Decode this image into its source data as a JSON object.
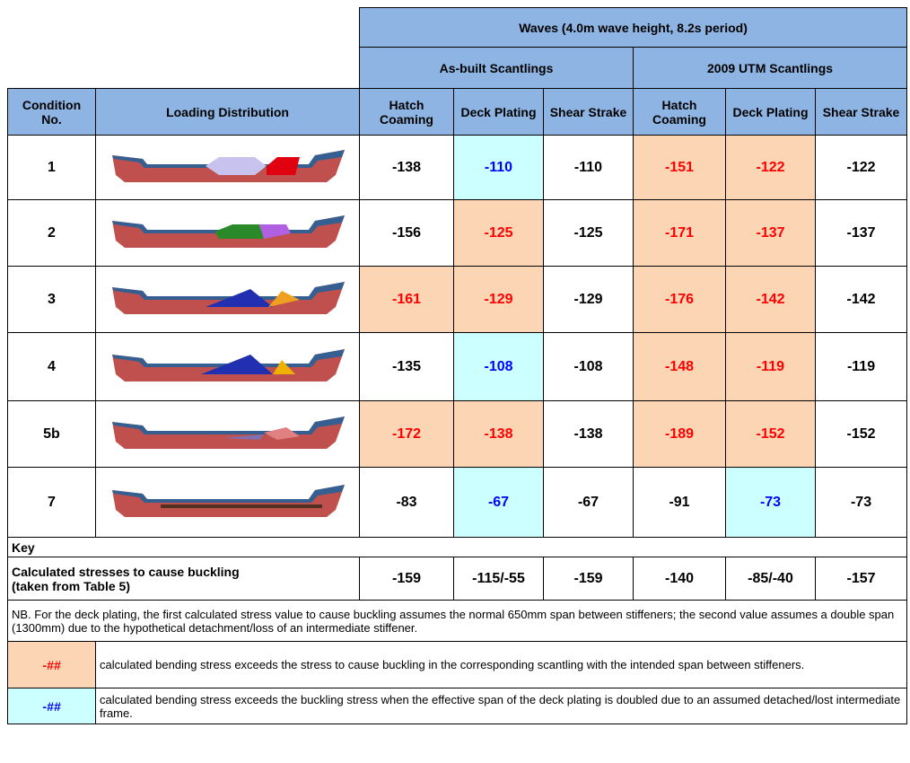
{
  "header": {
    "group_title": "Waves (4.0m wave height, 8.2s period)",
    "subgroups": [
      "As-built Scantlings",
      "2009 UTM Scantlings"
    ],
    "columns": [
      "Condition No.",
      "Loading Distribution",
      "Hatch Coaming",
      "Deck Plating",
      "Shear Strake",
      "Hatch Coaming",
      "Deck Plating",
      "Shear Strake"
    ]
  },
  "rows": [
    {
      "condition": "1",
      "values": [
        -138,
        -110,
        -110,
        -151,
        -122,
        -122
      ],
      "highlight": [
        null,
        "blue",
        null,
        "orange",
        "orange",
        null
      ]
    },
    {
      "condition": "2",
      "values": [
        -156,
        -125,
        -125,
        -171,
        -137,
        -137
      ],
      "highlight": [
        null,
        "orange",
        null,
        "orange",
        "orange",
        null
      ]
    },
    {
      "condition": "3",
      "values": [
        -161,
        -129,
        -129,
        -176,
        -142,
        -142
      ],
      "highlight": [
        "orange",
        "orange",
        null,
        "orange",
        "orange",
        null
      ]
    },
    {
      "condition": "4",
      "values": [
        -135,
        -108,
        -108,
        -148,
        -119,
        -119
      ],
      "highlight": [
        null,
        "blue",
        null,
        "orange",
        "orange",
        null
      ]
    },
    {
      "condition": "5b",
      "values": [
        -172,
        -138,
        -138,
        -189,
        -152,
        -152
      ],
      "highlight": [
        "orange",
        "orange",
        null,
        "orange",
        "orange",
        null
      ]
    },
    {
      "condition": "7",
      "values": [
        -83,
        -67,
        -67,
        -91,
        -73,
        -73
      ],
      "highlight": [
        null,
        "blue",
        null,
        null,
        "blue",
        null
      ]
    }
  ],
  "key": {
    "title": "Key",
    "buckling_label": "Calculated stresses to cause buckling (taken from Table 5)",
    "buckling_values": [
      "-159",
      "-115/-55",
      "-159",
      "-140",
      "-85/-40",
      "-157"
    ],
    "note": "NB. For the deck plating, the first calculated stress value to cause buckling assumes the normal 650mm span between stiffeners; the second value assumes a double span (1300mm) due to the hypothetical detachment/loss of an intermediate stiffener.",
    "legend": [
      {
        "symbol": "-##",
        "color": "orange",
        "text": "calculated bending stress exceeds the stress to cause buckling in the corresponding scantling with the intended span between stiffeners."
      },
      {
        "symbol": "-##",
        "color": "blue",
        "text": "calculated bending stress exceeds the buckling stress when the effective span of the deck plating is doubled due to an assumed detached/lost intermediate frame."
      }
    ]
  }
}
